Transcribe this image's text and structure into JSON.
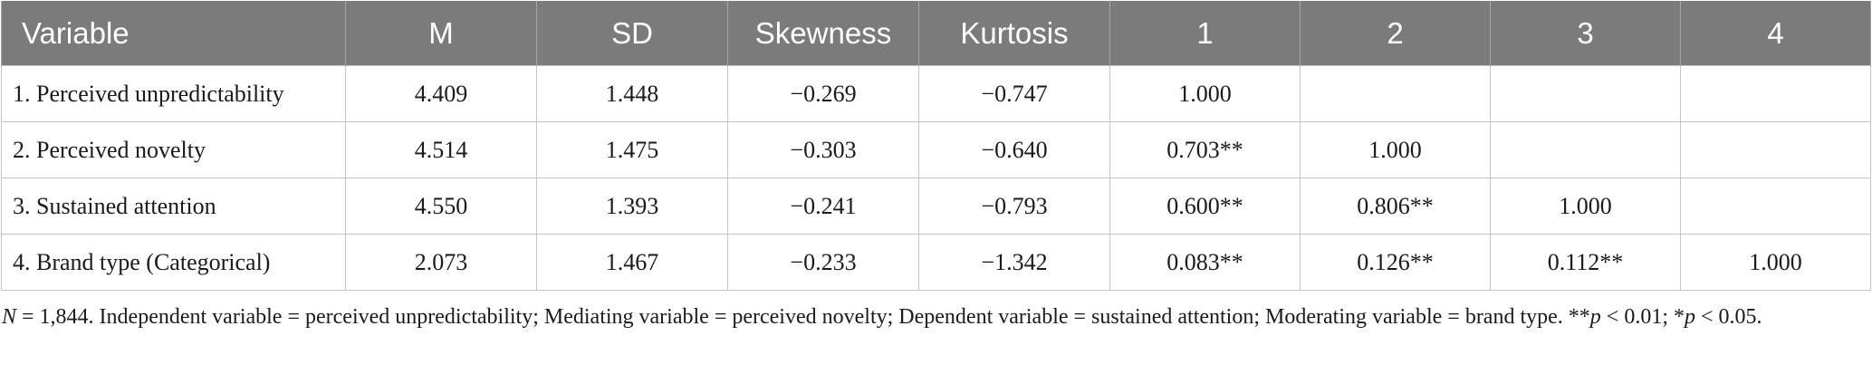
{
  "table": {
    "headers": [
      "Variable",
      "M",
      "SD",
      "Skewness",
      "Kurtosis",
      "1",
      "2",
      "3",
      "4"
    ],
    "rows": [
      [
        "1. Perceived unpredictability",
        "4.409",
        "1.448",
        "−0.269",
        "−0.747",
        "1.000",
        "",
        "",
        ""
      ],
      [
        "2. Perceived novelty",
        "4.514",
        "1.475",
        "−0.303",
        "−0.640",
        "0.703**",
        "1.000",
        "",
        ""
      ],
      [
        "3. Sustained attention",
        "4.550",
        "1.393",
        "−0.241",
        "−0.793",
        "0.600**",
        "0.806**",
        "1.000",
        ""
      ],
      [
        "4. Brand type (Categorical)",
        "2.073",
        "1.467",
        "−0.233",
        "−1.342",
        "0.083**",
        "0.126**",
        "0.112**",
        "1.000"
      ]
    ]
  },
  "note": {
    "n_symbol": "N",
    "n_text": " = 1,844. Independent variable = perceived unpredictability; Mediating variable = perceived novelty; Dependent variable = sustained attention; Moderating variable = brand type. **",
    "p1_symbol": "p",
    "p1_text": " < 0.01; *",
    "p2_symbol": "p",
    "p2_text": " < 0.05."
  }
}
